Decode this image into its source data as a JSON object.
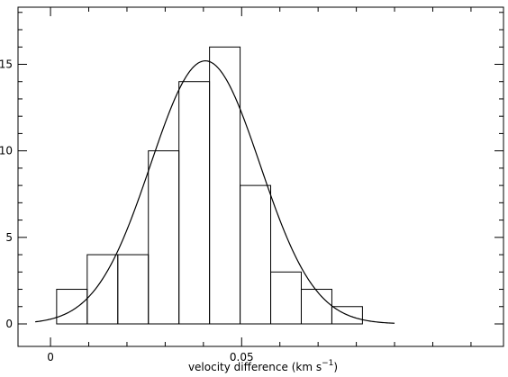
{
  "chart_data": {
    "type": "bar",
    "title": "",
    "xlabel": "velocity difference (km s",
    "xlabel_superscript": "−1",
    "xlabel_suffix": ")",
    "ylabel": "",
    "xlim": [
      -0.0085,
      0.1185
    ],
    "ylim": [
      -1.3,
      18.3
    ],
    "x_tick_labels": [
      {
        "value": 0,
        "label": "0"
      },
      {
        "value": 0.05,
        "label": "0.05"
      }
    ],
    "y_tick_labels": [
      {
        "value": 0,
        "label": "0"
      },
      {
        "value": 5,
        "label": "5"
      },
      {
        "value": 10,
        "label": "10"
      },
      {
        "value": 15,
        "label": "15"
      }
    ],
    "x_minor_step": 0.01,
    "y_minor_step": 1,
    "histogram": {
      "bin_edges": [
        0.0016,
        0.0096,
        0.0176,
        0.0256,
        0.0336,
        0.0416,
        0.0496,
        0.0576,
        0.0656,
        0.0736,
        0.0816
      ],
      "counts": [
        2,
        4,
        4,
        10,
        14,
        16,
        8,
        3,
        2,
        1
      ]
    },
    "gaussian_fit": {
      "amplitude": 15.2,
      "mean": 0.0405,
      "sigma": 0.0143,
      "x_range": [
        -0.004,
        0.09
      ]
    },
    "grid": false,
    "legend": "none"
  }
}
